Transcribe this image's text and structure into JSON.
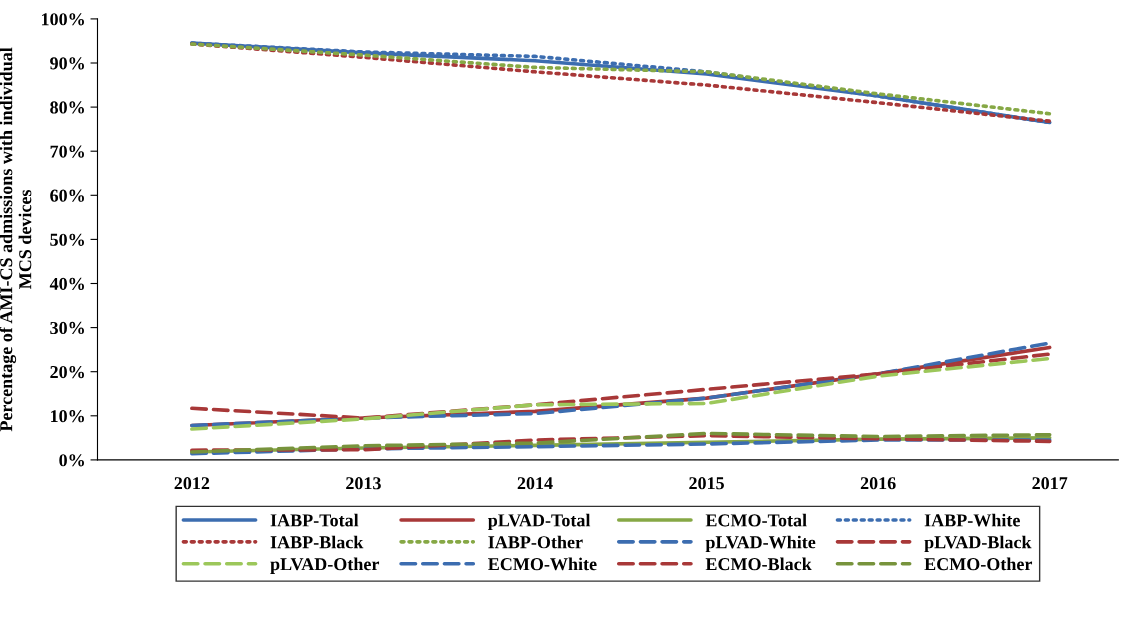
{
  "chart_data": {
    "type": "line",
    "ylabel": "Percentage of AMI-CS admissions with individual MCS devices",
    "categories": [
      "2012",
      "2013",
      "2014",
      "2015",
      "2016",
      "2017"
    ],
    "ylim": [
      0,
      100
    ],
    "yticks": [
      {
        "value": 0,
        "label": "0%"
      },
      {
        "value": 10,
        "label": "10%"
      },
      {
        "value": 20,
        "label": "20%"
      },
      {
        "value": 30,
        "label": "30%"
      },
      {
        "value": 40,
        "label": "40%"
      },
      {
        "value": 50,
        "label": "50%"
      },
      {
        "value": 60,
        "label": "60%"
      },
      {
        "value": 70,
        "label": "70%"
      },
      {
        "value": 80,
        "label": "80%"
      },
      {
        "value": 90,
        "label": "90%"
      },
      {
        "value": 100,
        "label": "100%"
      }
    ],
    "grid": false,
    "legend": "bottom",
    "marker": "none",
    "series": [
      {
        "name": "IABP-Total",
        "color": "#3c6db0",
        "line_style": "solid",
        "values": [
          94.5,
          92.3,
          90.5,
          87.5,
          82.5,
          76.5
        ]
      },
      {
        "name": "pLVAD-Total",
        "color": "#a83838",
        "line_style": "solid",
        "values": [
          7.8,
          9.5,
          11,
          14,
          19.5,
          25.5
        ]
      },
      {
        "name": "ECMO-Total",
        "color": "#86a845",
        "line_style": "solid",
        "values": [
          1.8,
          2.7,
          3.3,
          4,
          4.7,
          5
        ]
      },
      {
        "name": "IABP-White",
        "color": "#3c6db0",
        "line_style": "dotted",
        "values": [
          94.5,
          92.5,
          91.5,
          88,
          82.5,
          76.5
        ]
      },
      {
        "name": "IABP-Black",
        "color": "#a83838",
        "line_style": "dotted",
        "values": [
          94.3,
          91.3,
          88,
          85,
          81,
          76.8
        ]
      },
      {
        "name": "IABP-Other",
        "color": "#86a845",
        "line_style": "dotted",
        "values": [
          94.3,
          91.8,
          89,
          88,
          83,
          78.5
        ]
      },
      {
        "name": "pLVAD-White",
        "color": "#3c6db0",
        "line_style": "dashed",
        "values": [
          7.8,
          9.5,
          10.5,
          14,
          19.5,
          26.5
        ]
      },
      {
        "name": "pLVAD-Black",
        "color": "#a83838",
        "line_style": "dashed",
        "values": [
          11.7,
          9.5,
          12.5,
          16,
          19.5,
          24
        ]
      },
      {
        "name": "pLVAD-Other",
        "color": "#9cc75a",
        "line_style": "dashed",
        "values": [
          7,
          9.3,
          12.5,
          12.8,
          19,
          23
        ]
      },
      {
        "name": "ECMO-White",
        "color": "#3c6db0",
        "line_style": "dashed",
        "values": [
          1.4,
          2.5,
          3,
          3.6,
          4.5,
          4.5
        ]
      },
      {
        "name": "ECMO-Black",
        "color": "#a83838",
        "line_style": "dashed",
        "values": [
          2.2,
          2.3,
          4.5,
          5.5,
          4.8,
          4.2
        ]
      },
      {
        "name": "ECMO-Other",
        "color": "#77933c",
        "line_style": "dashed",
        "values": [
          1.8,
          3.2,
          3.8,
          6,
          5.3,
          5.7
        ]
      }
    ]
  }
}
